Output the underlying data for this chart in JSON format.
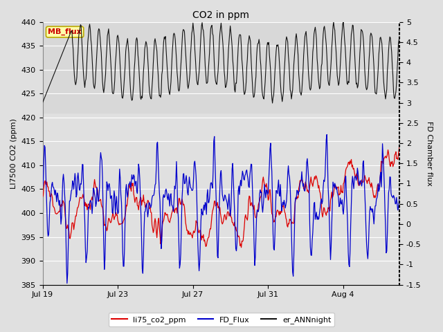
{
  "title": "CO2 in ppm",
  "ylabel_left": "LI7500 CO2 (ppm)",
  "ylabel_right": "FD Chamber flux",
  "ylim_left": [
    385,
    440
  ],
  "ylim_right": [
    -1.5,
    5.0
  ],
  "yticks_left": [
    385,
    390,
    395,
    400,
    405,
    410,
    415,
    420,
    425,
    430,
    435,
    440
  ],
  "yticks_right": [
    -1.5,
    -1.0,
    -0.5,
    0.0,
    0.5,
    1.0,
    1.5,
    2.0,
    2.5,
    3.0,
    3.5,
    4.0,
    4.5,
    5.0
  ],
  "xtick_labels": [
    "Jul 19",
    "Jul 23",
    "Jul 27",
    "Jul 31",
    "Aug 4"
  ],
  "xtick_days": [
    0,
    4,
    8,
    12,
    16
  ],
  "xlim": [
    0,
    19
  ],
  "legend_labels": [
    "li75_co2_ppm",
    "FD_Flux",
    "er_ANNnight"
  ],
  "legend_colors": [
    "#dd0000",
    "#0000cc",
    "#111111"
  ],
  "mb_flux_label": "MB_flux",
  "mb_flux_color": "#cc0000",
  "mb_flux_bg": "#ffffaa",
  "mb_flux_border": "#bbaa00",
  "shaded_ymin": 421,
  "shaded_ymax": 440,
  "shaded_color": "#d8d8d8",
  "bg_color": "#e0e0e0",
  "grid_color": "#ffffff",
  "title_fontsize": 10,
  "axis_label_fontsize": 8,
  "tick_fontsize": 8,
  "legend_fontsize": 8,
  "n_points": 600,
  "total_days": 19.5
}
